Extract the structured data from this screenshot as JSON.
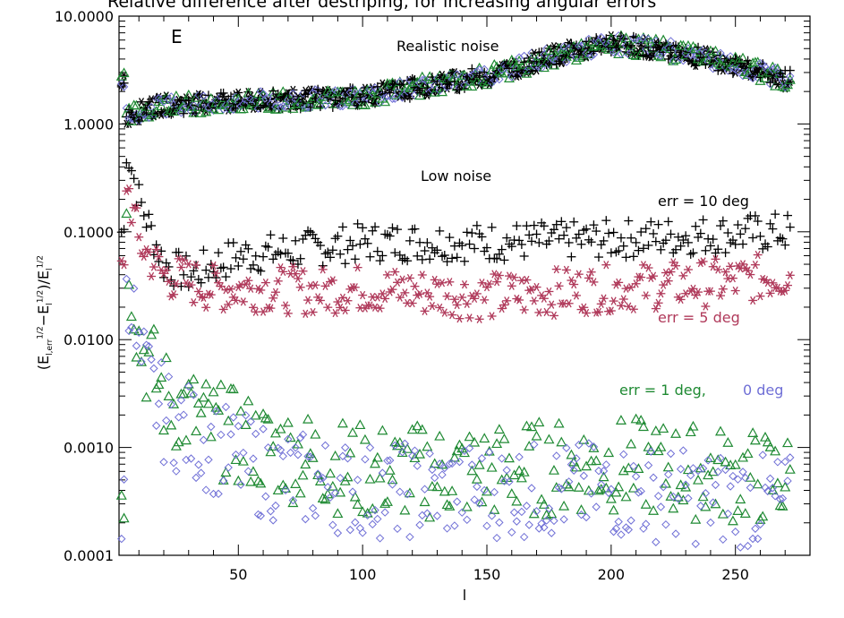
{
  "title": "Relative difference after destriping, for increasing angular errors",
  "panel_letter": "E",
  "ylabel": "(E l,err 1/2 − E l 1/2)/E l 1/2",
  "xlabel": "l",
  "annotations": {
    "realistic": "Realistic noise",
    "low": "Low noise",
    "err10": "err = 10 deg",
    "err5": "err = 5 deg",
    "err1": "err = 1 deg,",
    "err0": "0 deg"
  },
  "colors": {
    "black": "#000000",
    "red": "#b03a5b",
    "green": "#1f8a33",
    "blue": "#6f6fd6"
  },
  "chart_data": {
    "type": "scatter",
    "xlim": [
      2,
      280
    ],
    "ylim": [
      0.0001,
      10
    ],
    "yscale": "log",
    "xticks": [
      50,
      100,
      150,
      200,
      250
    ],
    "xtick_labels": [
      "50",
      "100",
      "150",
      "200",
      "250"
    ],
    "yticks": [
      0.0001,
      0.001,
      0.01,
      0.1,
      1,
      10
    ],
    "ytick_labels": [
      "0.0001",
      "0.0010",
      "0.0100",
      "0.1000",
      "1.0000",
      "10.0000"
    ],
    "series": [
      {
        "name": "err = 10 deg (low noise)",
        "marker": "plus",
        "color": "#000000",
        "trend": [
          [
            5,
            0.6
          ],
          [
            10,
            0.2
          ],
          [
            20,
            0.05
          ],
          [
            30,
            0.04
          ],
          [
            50,
            0.06
          ],
          [
            80,
            0.07
          ],
          [
            100,
            0.08
          ],
          [
            150,
            0.08
          ],
          [
            200,
            0.085
          ],
          [
            270,
            0.1
          ]
        ]
      },
      {
        "name": "err = 5 deg (low noise)",
        "marker": "asterisk",
        "color": "#b03a5b",
        "trend": [
          [
            5,
            0.3
          ],
          [
            10,
            0.08
          ],
          [
            20,
            0.04
          ],
          [
            40,
            0.03
          ],
          [
            60,
            0.03
          ],
          [
            80,
            0.028
          ],
          [
            100,
            0.03
          ],
          [
            150,
            0.025
          ],
          [
            200,
            0.03
          ],
          [
            250,
            0.035
          ],
          [
            270,
            0.04
          ]
        ]
      },
      {
        "name": "err = 1 deg (low noise)",
        "marker": "triangle",
        "color": "#1f8a33",
        "trend": [
          [
            5,
            0.1
          ],
          [
            10,
            0.01
          ],
          [
            20,
            0.003
          ],
          [
            40,
            0.0015
          ],
          [
            60,
            0.001
          ],
          [
            100,
            0.0006
          ],
          [
            150,
            0.0006
          ],
          [
            200,
            0.0007
          ],
          [
            270,
            0.0005
          ]
        ]
      },
      {
        "name": "err = 0 deg (low noise)",
        "marker": "diamond",
        "color": "#6f6fd6",
        "trend": [
          [
            5,
            0.05
          ],
          [
            10,
            0.006
          ],
          [
            20,
            0.002
          ],
          [
            40,
            0.001
          ],
          [
            60,
            0.0006
          ],
          [
            100,
            0.0004
          ],
          [
            150,
            0.0004
          ],
          [
            200,
            0.0004
          ],
          [
            270,
            0.0003
          ]
        ]
      },
      {
        "name": "Realistic noise",
        "marker": "mixed",
        "color": "#000000",
        "trend": [
          [
            5,
            1.2
          ],
          [
            20,
            1.5
          ],
          [
            50,
            1.6
          ],
          [
            100,
            1.8
          ],
          [
            150,
            2.8
          ],
          [
            180,
            4.5
          ],
          [
            200,
            5.5
          ],
          [
            220,
            5.0
          ],
          [
            250,
            3.5
          ],
          [
            270,
            2.6
          ]
        ]
      }
    ]
  }
}
